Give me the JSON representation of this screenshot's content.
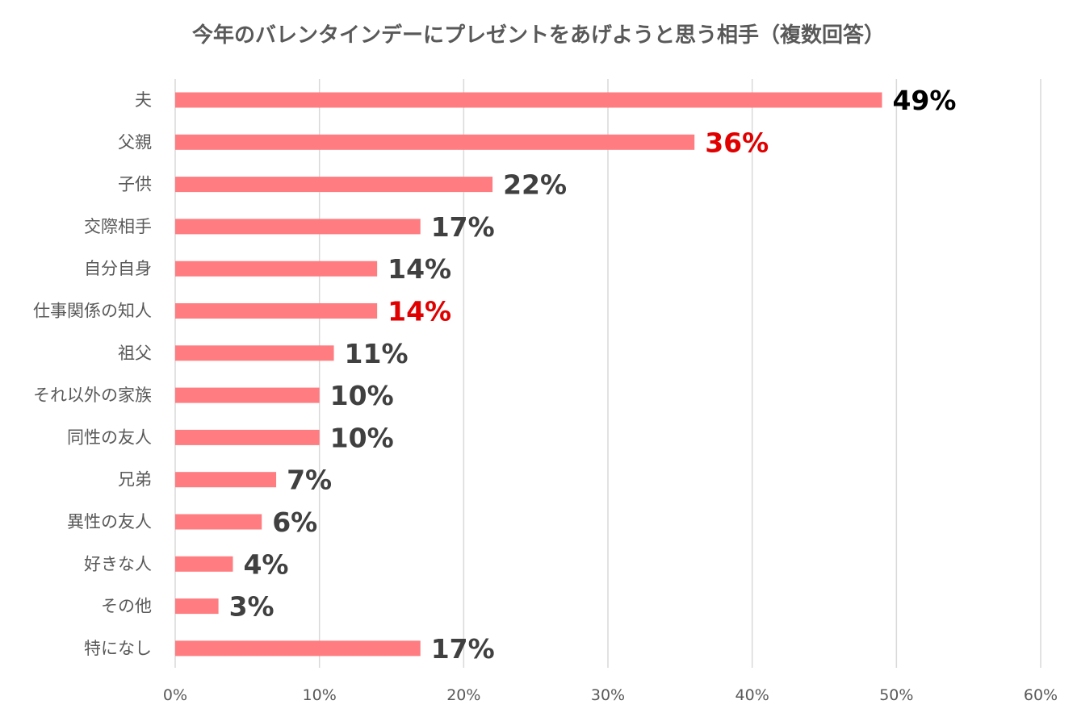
{
  "chart_data": {
    "type": "bar",
    "orientation": "horizontal",
    "title": "今年のバレンタインデーにプレゼントをあげようと思う相手（複数回答）",
    "categories": [
      "夫",
      "父親",
      "子供",
      "交際相手",
      "自分自身",
      "仕事関係の知人",
      "祖父",
      "それ以外の家族",
      "同性の友人",
      "兄弟",
      "異性の友人",
      "好きな人",
      "その他",
      "特になし"
    ],
    "values": [
      49,
      36,
      22,
      17,
      14,
      14,
      11,
      10,
      10,
      7,
      6,
      4,
      3,
      17
    ],
    "data_labels": [
      "49%",
      "36%",
      "22%",
      "17%",
      "14%",
      "14%",
      "11%",
      "10%",
      "10%",
      "7%",
      "6%",
      "4%",
      "3%",
      "17%"
    ],
    "label_colors": [
      "#000000",
      "#e00000",
      "#404040",
      "#404040",
      "#404040",
      "#e00000",
      "#404040",
      "#404040",
      "#404040",
      "#404040",
      "#404040",
      "#404040",
      "#404040",
      "#404040"
    ],
    "xlim": [
      0,
      60
    ],
    "x_ticks": [
      0,
      10,
      20,
      30,
      40,
      50,
      60
    ],
    "x_tick_labels": [
      "0%",
      "10%",
      "20%",
      "30%",
      "40%",
      "50%",
      "60%"
    ],
    "bar_color": "#ff7c80",
    "grid": true,
    "legend": "none"
  }
}
